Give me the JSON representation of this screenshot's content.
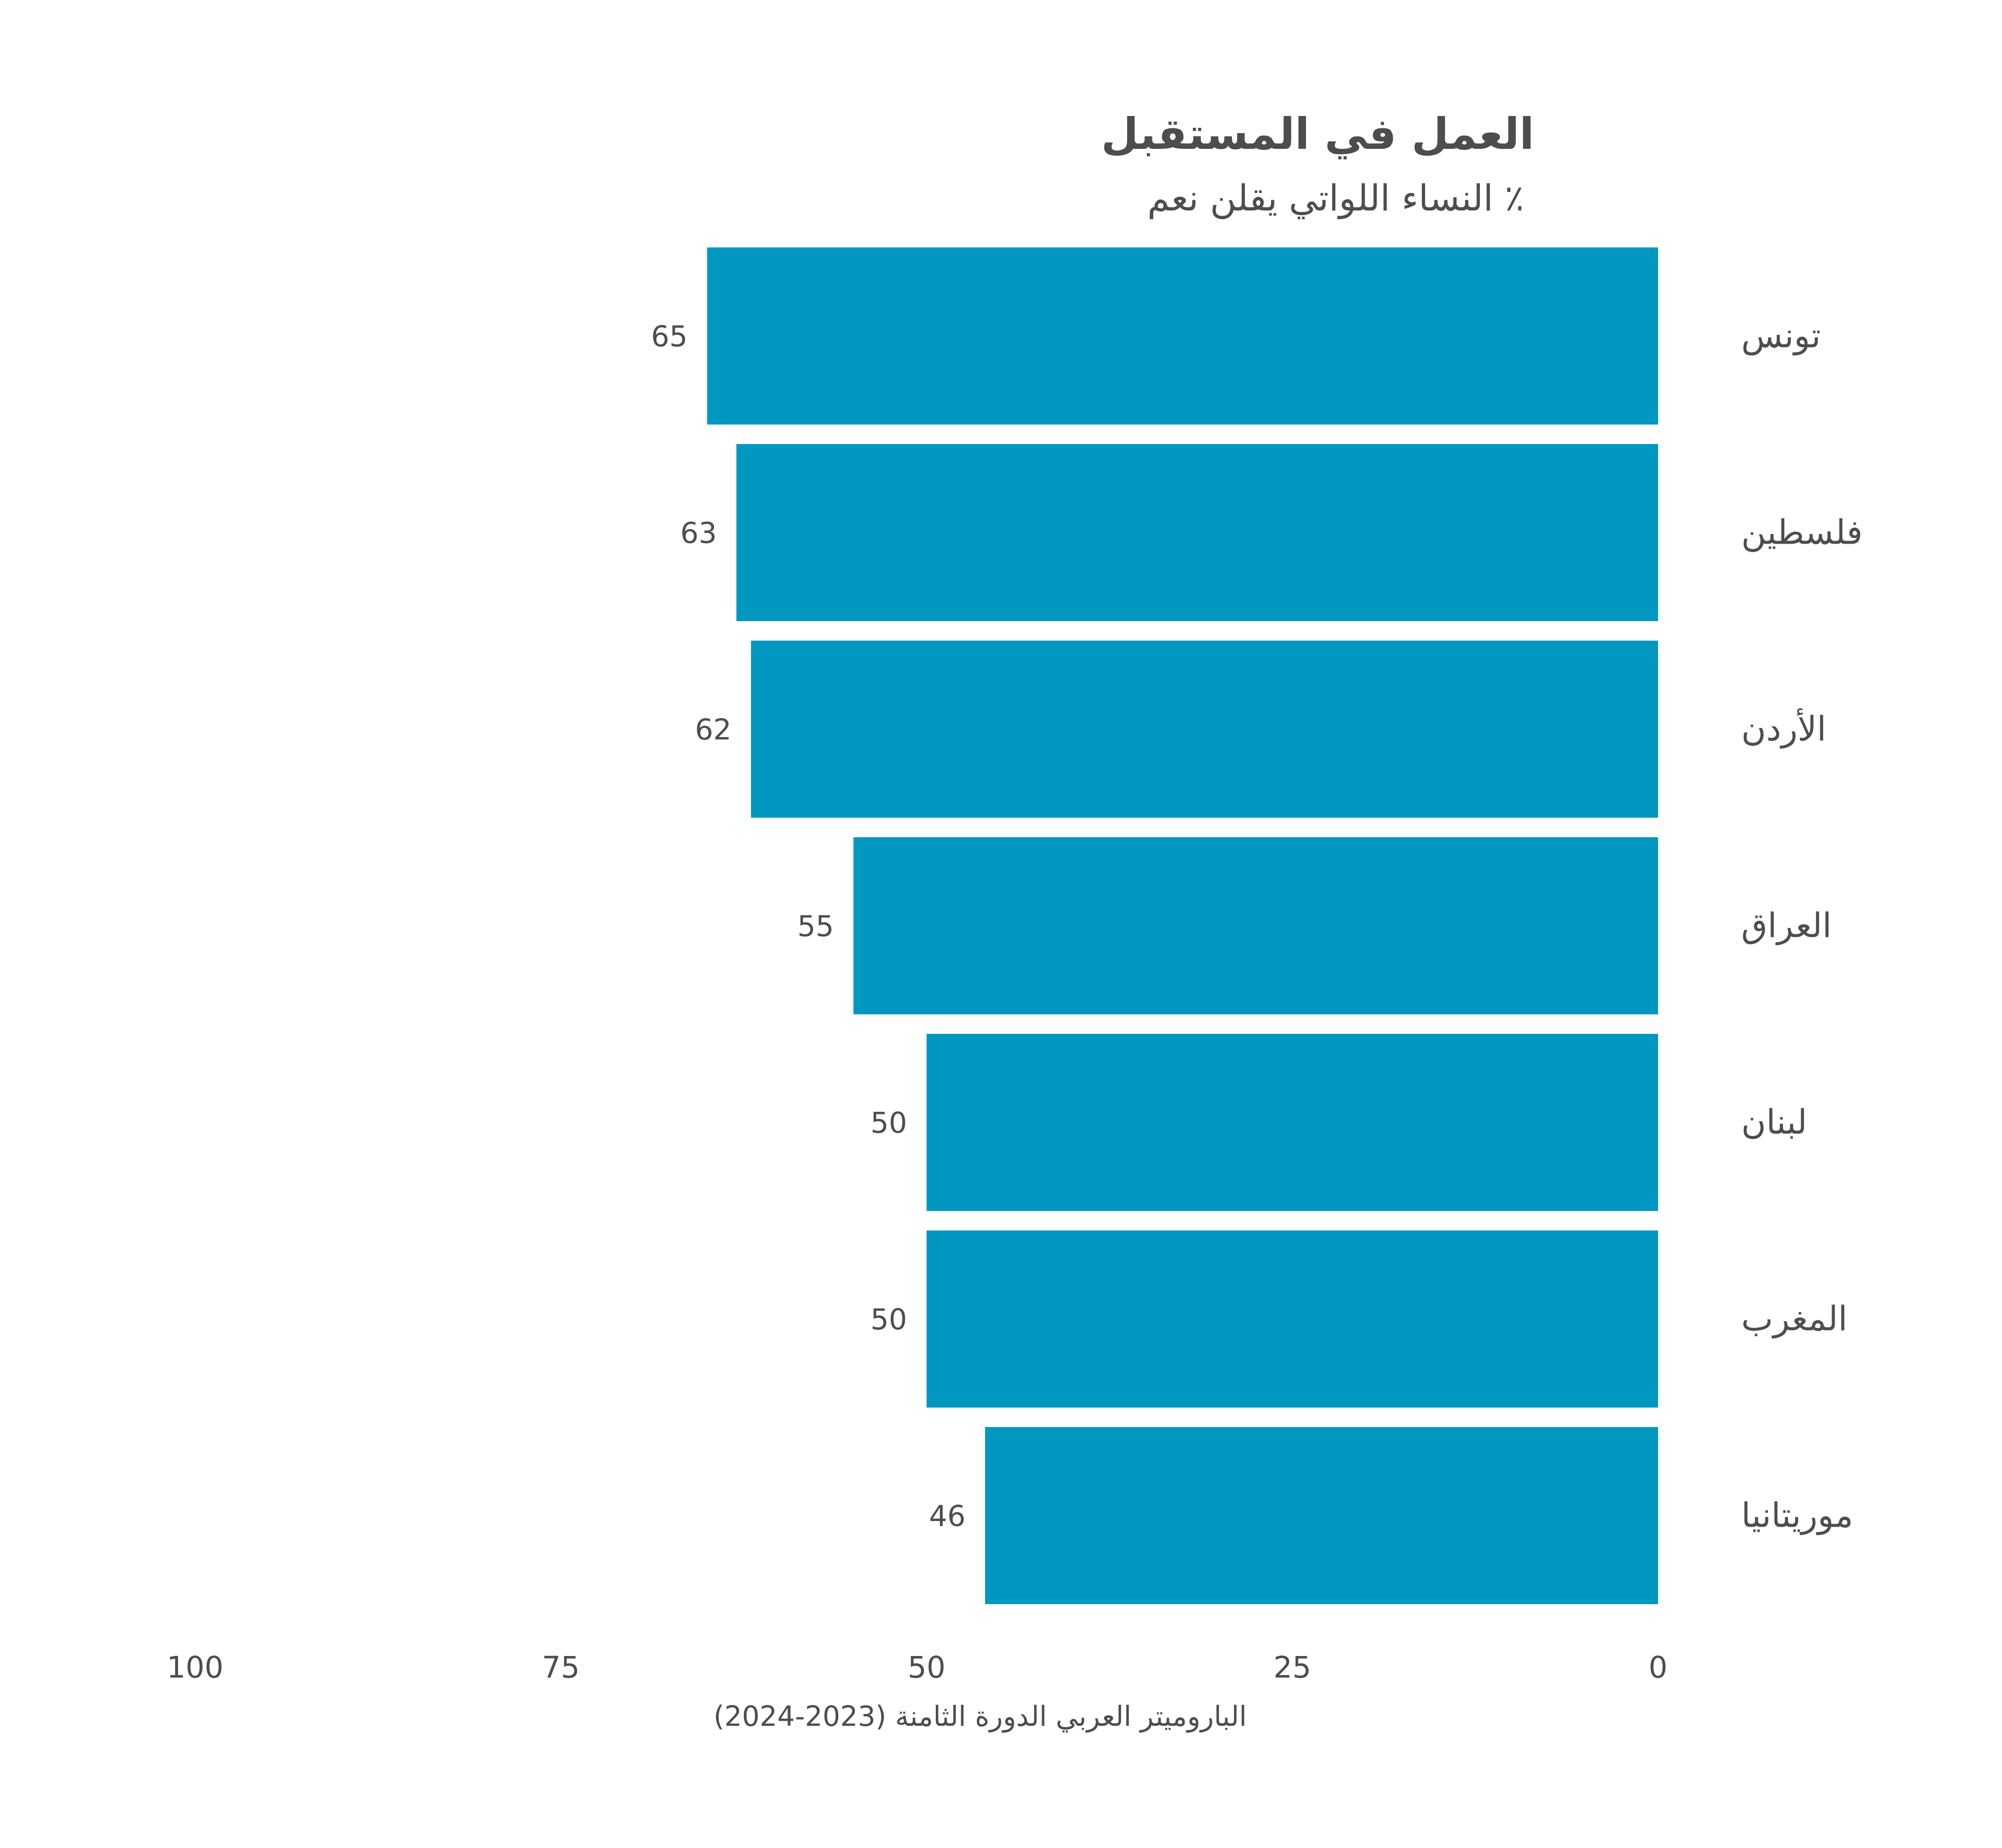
{
  "chart_data": {
    "type": "bar",
    "orientation": "horizontal",
    "x_direction": "reversed",
    "title": "العمل في المستقبل",
    "subtitle": "٪ النساء اللواتي يقلن نعم",
    "categories": [
      "تونس",
      "فلسطين",
      "الأردن",
      "العراق",
      "لبنان",
      "المغرب",
      "موريتانيا"
    ],
    "values": [
      65,
      63,
      62,
      55,
      50,
      50,
      46
    ],
    "value_labels": [
      "65",
      "63",
      "62",
      "55",
      "50",
      "50",
      "46"
    ],
    "xlim": [
      0,
      100
    ],
    "xticks": [
      0,
      25,
      50,
      75,
      100
    ],
    "xtick_labels": [
      "0",
      "25",
      "50",
      "75",
      "100"
    ],
    "grid": false,
    "legend": "none",
    "bar_color": "#0098c1",
    "text_color": "#4d4d4d",
    "source": "الباروميتر العربي الدورة الثامنة (2023-2024)"
  }
}
